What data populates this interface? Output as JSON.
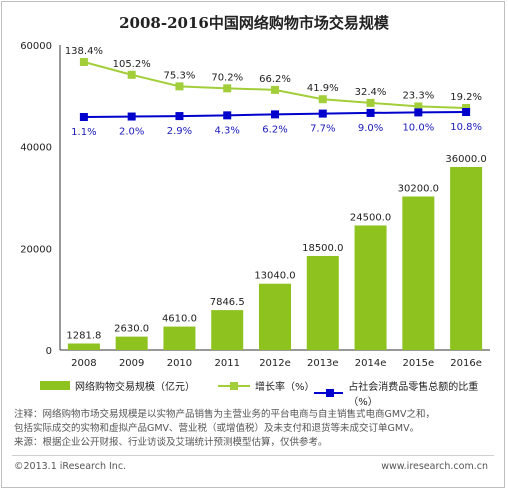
{
  "chart_data": {
    "type": "bar",
    "title": "2008-2016中国网络购物市场交易规模",
    "categories": [
      "2008",
      "2009",
      "2010",
      "2011",
      "2012e",
      "2013e",
      "2014e",
      "2015e",
      "2016e"
    ],
    "ylim": [
      0,
      60000
    ],
    "yticks": [
      "0",
      "20000",
      "40000",
      "60000"
    ],
    "series": [
      {
        "name": "网络购物交易规模（亿元）",
        "kind": "bar",
        "color": "#8dc21f",
        "values": [
          1281.8,
          2630.0,
          4610.0,
          7846.5,
          13040.0,
          18500.0,
          24500.0,
          30200.0,
          36000.0
        ],
        "labels": [
          "1281.8",
          "2630.0",
          "4610.0",
          "7846.5",
          "13040.0",
          "18500.0",
          "24500.0",
          "30200.0",
          "36000.0"
        ]
      },
      {
        "name": "增长率（%）",
        "kind": "line",
        "color": "#a2ce3a",
        "values": [
          138.4,
          105.2,
          75.3,
          70.2,
          66.2,
          41.9,
          32.4,
          23.3,
          19.2
        ],
        "labels": [
          "138.4%",
          "105.2%",
          "75.3%",
          "70.2%",
          "66.2%",
          "41.9%",
          "32.4%",
          "23.3%",
          "19.2%"
        ]
      },
      {
        "name": "占社会消费品零售总额的比重（%）",
        "kind": "line",
        "color": "#0000cc",
        "values": [
          1.1,
          2.0,
          2.9,
          4.3,
          6.2,
          7.7,
          9.0,
          10.0,
          10.8
        ],
        "labels": [
          "1.1%",
          "2.0%",
          "2.9%",
          "4.3%",
          "6.2%",
          "7.7%",
          "9.0%",
          "10.0%",
          "10.8%"
        ]
      }
    ]
  },
  "notes": {
    "line1": "注释：网络购物市场交易规模是以实物产品销售为主营业务的平台电商与自主销售式电商GMV之和，",
    "line2": "包括实际成交的实物和虚拟产品GMV、营业税（或增值税）及未支付和退货等未成交订单GMV。",
    "line3": "来源：根据企业公开财报、行业访谈及艾瑞统计预测模型估算，仅供参考。"
  },
  "footer": {
    "copyright": "©2013.1 iResearch Inc.",
    "website": "www.iresearch.com.cn"
  }
}
